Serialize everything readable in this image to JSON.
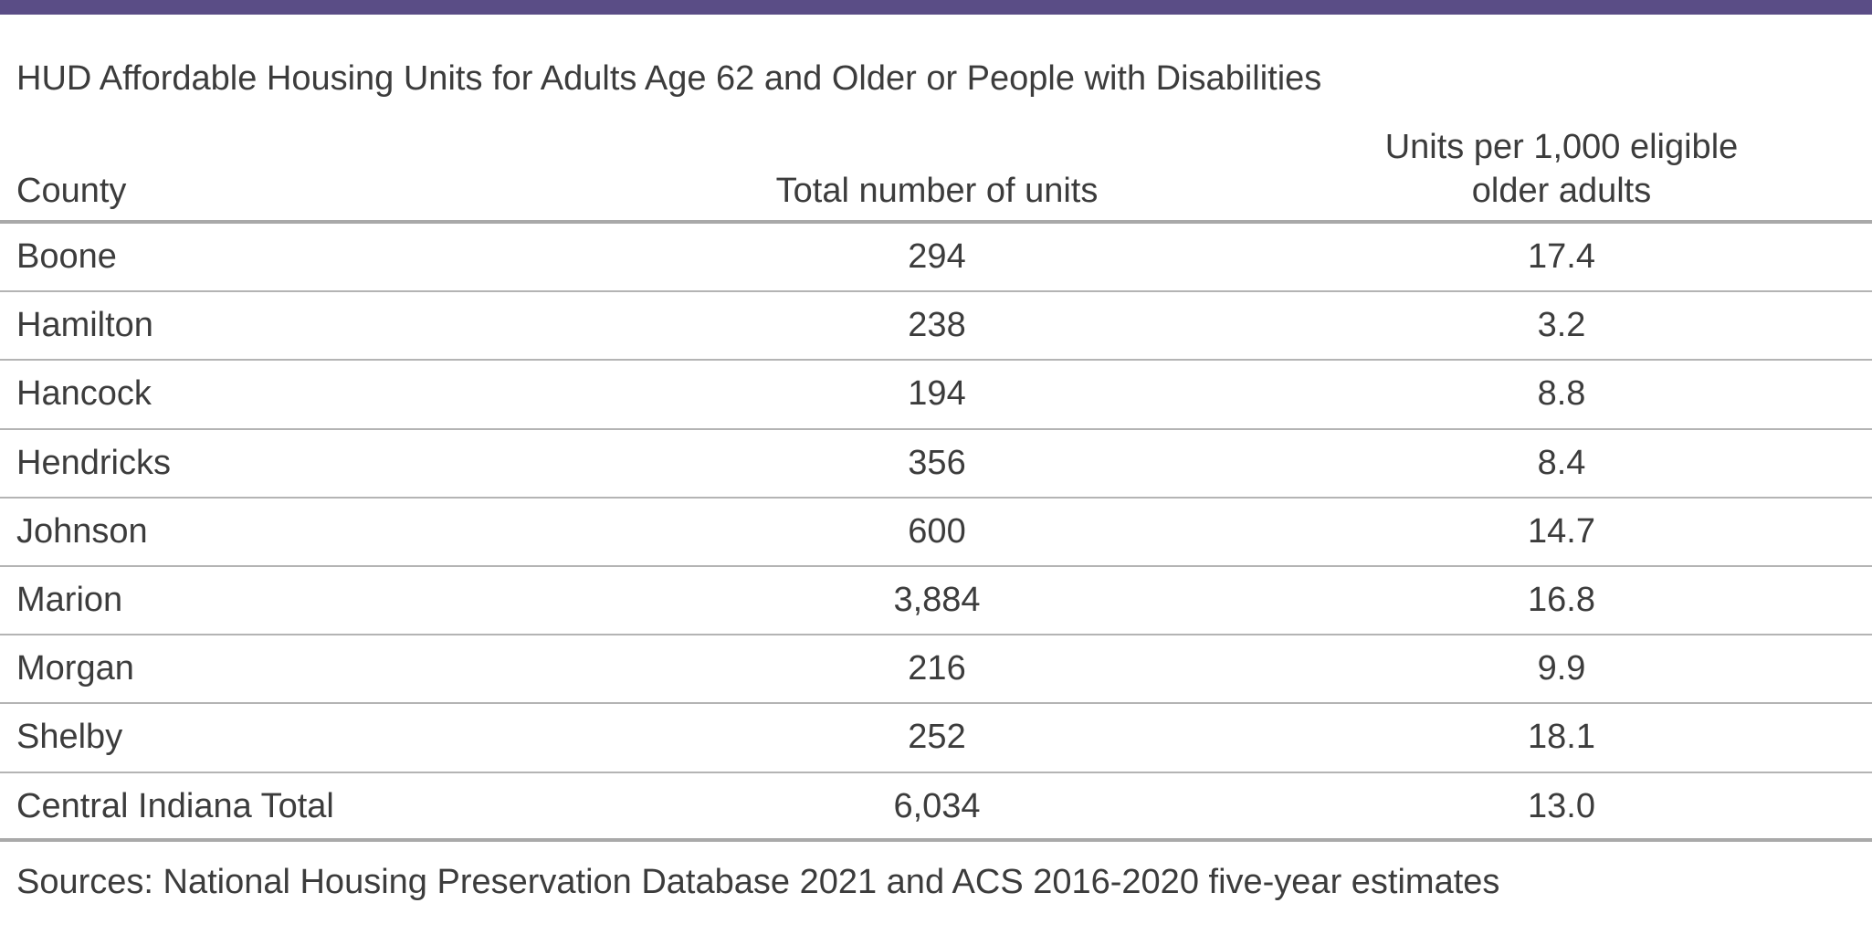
{
  "colors": {
    "top_bar": "#5a4d86",
    "text": "#3c3c3c",
    "rule": "#a9a9a9"
  },
  "title": "HUD Affordable Housing Units for Adults Age 62 and Older or People with Disabilities",
  "table": {
    "columns": [
      "County",
      "Total number of units",
      "Units per 1,000 eligible older adults"
    ],
    "column_rate_lines": [
      "Units per 1,000 eligible",
      "older adults"
    ],
    "rows": [
      {
        "county": "Boone",
        "total": "294",
        "rate": "17.4"
      },
      {
        "county": "Hamilton",
        "total": "238",
        "rate": "3.2"
      },
      {
        "county": "Hancock",
        "total": "194",
        "rate": "8.8"
      },
      {
        "county": "Hendricks",
        "total": "356",
        "rate": "8.4"
      },
      {
        "county": "Johnson",
        "total": "600",
        "rate": "14.7"
      },
      {
        "county": "Marion",
        "total": "3,884",
        "rate": "16.8"
      },
      {
        "county": "Morgan",
        "total": "216",
        "rate": "9.9"
      },
      {
        "county": "Shelby",
        "total": "252",
        "rate": "18.1"
      },
      {
        "county": "Central Indiana Total",
        "total": "6,034",
        "rate": "13.0"
      }
    ]
  },
  "source": "Sources: National Housing Preservation Database 2021 and ACS 2016-2020 five-year estimates"
}
